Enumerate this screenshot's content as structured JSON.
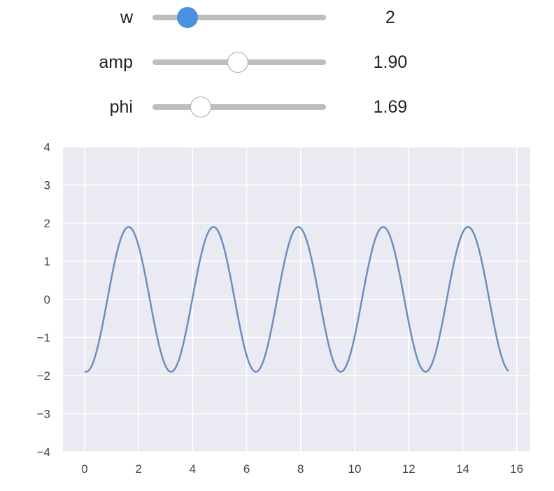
{
  "controls": {
    "sliders": [
      {
        "label": "w",
        "value_text": "2",
        "fraction": 0.2,
        "active": true
      },
      {
        "label": "amp",
        "value_text": "1.90",
        "fraction": 0.49,
        "active": false
      },
      {
        "label": "phi",
        "value_text": "1.69",
        "fraction": 0.28,
        "active": false
      }
    ]
  },
  "colors": {
    "plot_background": "#eaeaf2",
    "grid": "#ffffff",
    "line": "#6c8ebf",
    "slider_track": "#bdbdbd",
    "slider_thumb_active": "#4a90e2",
    "slider_thumb": "#ffffff"
  },
  "chart_data": {
    "type": "line",
    "title": "",
    "xlabel": "",
    "ylabel": "",
    "xlim": [
      -0.8,
      16.5
    ],
    "ylim": [
      -4,
      4
    ],
    "xticks": [
      "0",
      "2",
      "4",
      "6",
      "8",
      "10",
      "12",
      "14",
      "16"
    ],
    "yticks": [
      "4",
      "3",
      "2",
      "1",
      "0",
      "−1",
      "−2",
      "−3",
      "−4"
    ],
    "grid": true,
    "legend": "none",
    "series": [
      {
        "function": "amp * sin(w * x - phi)",
        "w": 2,
        "amp": 1.9,
        "phi": 1.69,
        "x_range": [
          0,
          15.7
        ],
        "x": [
          0,
          0.2,
          0.4,
          0.6,
          0.8,
          1.0,
          1.2,
          1.4,
          1.6,
          1.8,
          2.0,
          2.2,
          2.4,
          2.6,
          2.8,
          3.0,
          3.2,
          3.4,
          3.6,
          3.8,
          4.0,
          4.2,
          4.4,
          4.6,
          4.8,
          5.0,
          5.2,
          5.4,
          5.6,
          5.8,
          6.0,
          6.2,
          6.4,
          6.6,
          6.8,
          7.0,
          7.2,
          7.4,
          7.6,
          7.8,
          8.0,
          8.2,
          8.4,
          8.6,
          8.8,
          9.0,
          9.2,
          9.4,
          9.6,
          9.8,
          10.0,
          10.2,
          10.4,
          10.6,
          10.8,
          11.0,
          11.2,
          11.4,
          11.6,
          11.8,
          12.0,
          12.2,
          12.4,
          12.6,
          12.8,
          13.0,
          13.2,
          13.4,
          13.6,
          13.8,
          14.0,
          14.2,
          14.4,
          14.6,
          14.8,
          15.0,
          15.2,
          15.4,
          15.6,
          15.7
        ],
        "y": [
          -1.88,
          -1.87,
          -1.59,
          -1.07,
          -0.39,
          0.35,
          1.05,
          1.57,
          1.87,
          1.88,
          1.6,
          1.08,
          0.4,
          -0.34,
          -1.04,
          -1.57,
          -1.86,
          -1.88,
          -1.61,
          -1.09,
          -0.41,
          0.33,
          1.03,
          1.56,
          1.86,
          1.88,
          1.61,
          1.1,
          0.42,
          -0.32,
          -1.02,
          -1.55,
          -1.86,
          -1.89,
          -1.62,
          -1.11,
          -0.43,
          0.31,
          1.01,
          1.55,
          1.85,
          1.89,
          1.62,
          1.12,
          0.44,
          -0.3,
          -1.0,
          -1.54,
          -1.85,
          -1.89,
          -1.63,
          -1.12,
          -0.45,
          0.29,
          0.99,
          1.53,
          1.85,
          1.89,
          1.63,
          1.13,
          0.46,
          -0.28,
          -0.99,
          -1.53,
          -1.85,
          -1.89,
          -1.64,
          -1.14,
          -0.47,
          0.27,
          0.98,
          1.52,
          1.84,
          1.89,
          1.64,
          1.15,
          0.48,
          -0.26,
          -0.97,
          -1.86
        ]
      }
    ]
  }
}
